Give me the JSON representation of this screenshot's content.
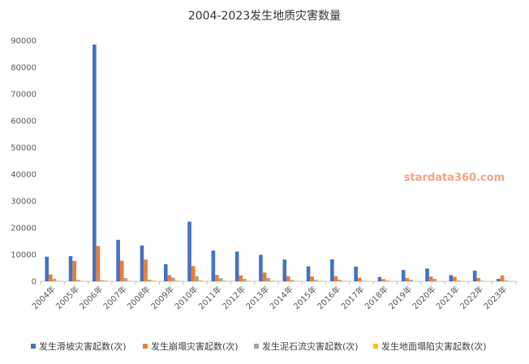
{
  "chart_data": {
    "type": "bar",
    "title": "2004-2023发生地质灾害数量",
    "xlabel": "",
    "ylabel": "",
    "ylim": [
      0,
      90000
    ],
    "yticks": [
      "0",
      "10000",
      "20000",
      "30000",
      "40000",
      "50000",
      "60000",
      "70000",
      "80000",
      "90000"
    ],
    "grid": false,
    "legend_position": "bottom",
    "categories": [
      "2004年",
      "2005年",
      "2006年",
      "2007年",
      "2008年",
      "2009年",
      "2010年",
      "2011年",
      "2012年",
      "2013年",
      "2014年",
      "2015年",
      "2016年",
      "2017年",
      "2018年",
      "2019年",
      "2020年",
      "2021年",
      "2022年",
      "2023年"
    ],
    "series": [
      {
        "name": "发生滑坡灾害起数(次)",
        "color": "#4472C4",
        "values": [
          9200,
          9400,
          88500,
          15500,
          13400,
          6400,
          22300,
          11500,
          11100,
          9900,
          8100,
          5600,
          8200,
          5500,
          1600,
          4200,
          4800,
          2300,
          4000,
          900
        ]
      },
      {
        "name": "发生崩塌灾害起数(次)",
        "color": "#ED7D31",
        "values": [
          2600,
          7600,
          13200,
          7700,
          8100,
          2300,
          5700,
          2400,
          2200,
          3300,
          1900,
          1800,
          1900,
          1300,
          800,
          1200,
          1800,
          1700,
          1300,
          2200
        ]
      },
      {
        "name": "发生泥石流灾害起数(次)",
        "color": "#A5A5A5",
        "values": [
          1000,
          500,
          400,
          1200,
          600,
          1400,
          1900,
          1200,
          900,
          1300,
          500,
          500,
          600,
          200,
          300,
          600,
          900,
          300,
          200,
          300
        ]
      },
      {
        "name": "发生地面塌陷灾害起数(次)",
        "color": "#FFC000",
        "values": [
          200,
          200,
          300,
          200,
          300,
          300,
          400,
          300,
          200,
          300,
          200,
          200,
          200,
          100,
          100,
          100,
          100,
          100,
          100,
          100
        ]
      }
    ]
  },
  "watermark": {
    "text": "stardata360.com",
    "color": "#F4A582"
  }
}
